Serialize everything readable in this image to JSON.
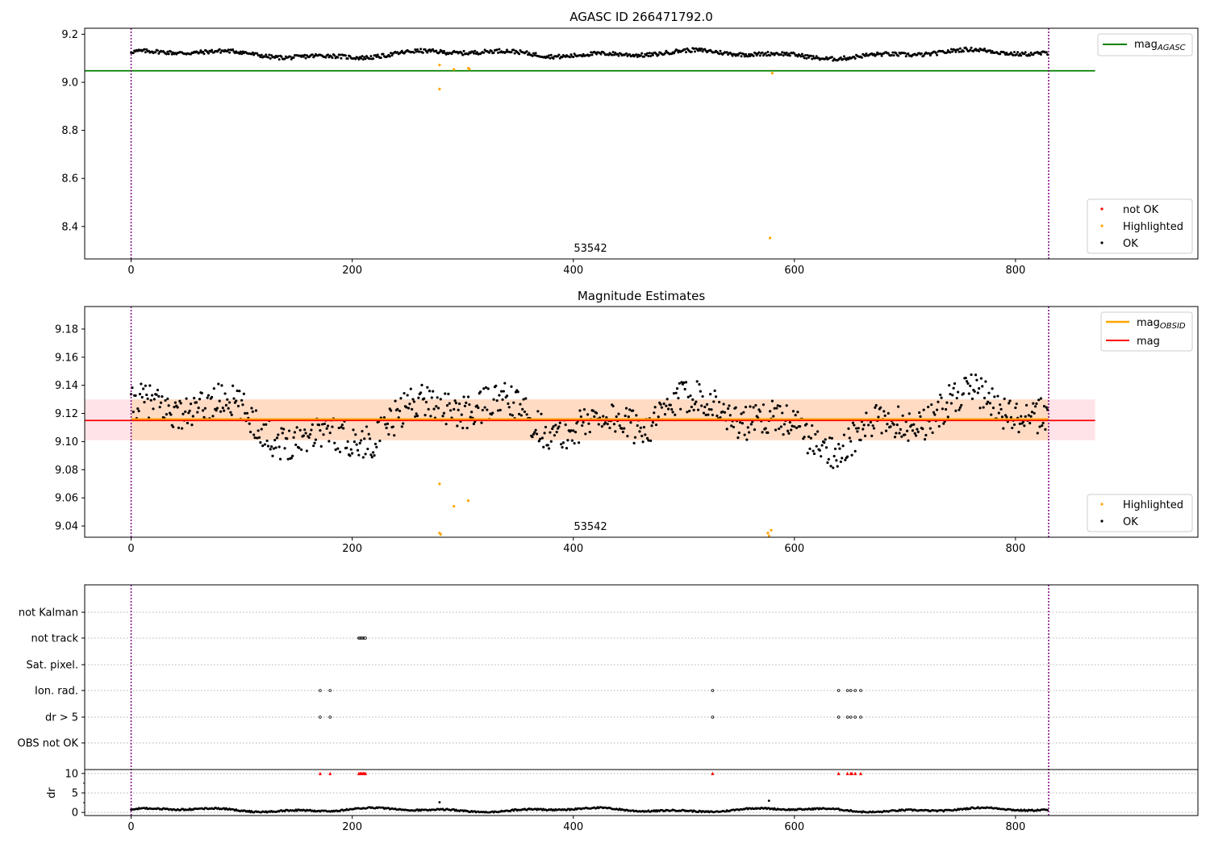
{
  "colors": {
    "ok": "#000000",
    "highlighted": "#ffa500",
    "not_ok": "#ff0000",
    "mag_agasc": "#008000",
    "mag_obsid": "#ffa500",
    "mag": "#ff0000",
    "band_outer": "#ffc0cb",
    "band_inner": "#ffd8b8",
    "vline": "#800080",
    "grid": "#b0b0b0"
  },
  "chart_data": [
    {
      "id": "agasc",
      "type": "scatter",
      "title": "AGASC ID 266471792.0",
      "xlim": [
        -42,
        965
      ],
      "ylim": [
        8.265,
        9.225
      ],
      "xticks": [
        0,
        200,
        400,
        600,
        800
      ],
      "yticks": [
        8.4,
        8.6,
        8.8,
        9.0,
        9.2
      ],
      "ytick_labels": [
        "8.4",
        "8.6",
        "8.8",
        "9.0",
        "9.2"
      ],
      "obs_label": "53542",
      "obs_label_x": 400,
      "vlines": [
        0,
        830
      ],
      "mag_agasc": {
        "value": 9.048,
        "x_range": [
          -42,
          872
        ]
      },
      "ok_series": {
        "n": 830,
        "base": 9.118
      },
      "highlighted": [
        {
          "x": 279,
          "y": 9.072
        },
        {
          "x": 279,
          "y": 8.972
        },
        {
          "x": 292,
          "y": 9.054
        },
        {
          "x": 305,
          "y": 9.059
        },
        {
          "x": 306,
          "y": 9.055
        },
        {
          "x": 578,
          "y": 8.352
        },
        {
          "x": 580,
          "y": 9.038
        }
      ],
      "legend_top": [
        {
          "label_main": "mag",
          "label_sub": "AGASC",
          "kind": "line",
          "color": "#008000"
        }
      ],
      "legend_bottom": [
        {
          "label": "not OK",
          "color": "#ff0000"
        },
        {
          "label": "Highlighted",
          "color": "#ffa500"
        },
        {
          "label": "OK",
          "color": "#000000"
        }
      ]
    },
    {
      "id": "estimates",
      "type": "scatter",
      "title": "Magnitude Estimates",
      "xlim": [
        -42,
        965
      ],
      "ylim": [
        9.032,
        9.196
      ],
      "xticks": [
        0,
        200,
        400,
        600,
        800
      ],
      "yticks": [
        9.04,
        9.06,
        9.08,
        9.1,
        9.12,
        9.14,
        9.16,
        9.18
      ],
      "ytick_labels": [
        "9.04",
        "9.06",
        "9.08",
        "9.10",
        "9.12",
        "9.14",
        "9.16",
        "9.18"
      ],
      "obs_label": "53542",
      "obs_label_x": 400,
      "vlines": [
        0,
        830
      ],
      "mag": 9.115,
      "mag_obsid": 9.116,
      "band_outer": [
        9.101,
        9.13,
        -42,
        872
      ],
      "band_inner": [
        9.101,
        9.13,
        0,
        830
      ],
      "ok_series": {
        "n": 830,
        "base": 9.116
      },
      "highlighted": [
        {
          "x": 279,
          "y": 9.07
        },
        {
          "x": 279,
          "y": 9.035
        },
        {
          "x": 280,
          "y": 9.034
        },
        {
          "x": 292,
          "y": 9.054
        },
        {
          "x": 305,
          "y": 9.058
        },
        {
          "x": 576,
          "y": 9.035
        },
        {
          "x": 577,
          "y": 9.033
        },
        {
          "x": 579,
          "y": 9.037
        }
      ],
      "legend_top": [
        {
          "label_main": "mag",
          "label_sub": "OBSID",
          "kind": "line",
          "color": "#ffa500"
        },
        {
          "label_main": "mag",
          "label_sub": "",
          "kind": "line",
          "color": "#ff0000"
        }
      ],
      "legend_bottom": [
        {
          "label": "Highlighted",
          "color": "#ffa500"
        },
        {
          "label": "OK",
          "color": "#000000"
        }
      ]
    },
    {
      "id": "flags",
      "type": "scatter",
      "xlim": [
        -42,
        965
      ],
      "xticks": [
        0,
        200,
        400,
        600,
        800
      ],
      "vlines": [
        0,
        830
      ],
      "flag_rows": [
        "not Kalman",
        "not track",
        "Sat. pixel.",
        "Ion. rad.",
        "dr > 5",
        "OBS not OK"
      ],
      "flag_points": [
        {
          "row": "not track",
          "x": [
            206,
            207,
            208,
            209,
            210,
            211,
            212
          ]
        },
        {
          "row": "Ion. rad.",
          "x": [
            171,
            180,
            526,
            640,
            648,
            651,
            655,
            660
          ]
        },
        {
          "row": "dr > 5",
          "x": [
            171,
            180,
            526,
            640,
            648,
            651,
            655,
            660
          ]
        }
      ],
      "dr": {
        "ylabel": "dr",
        "ylim": [
          -0.8,
          11
        ],
        "yticks": [
          0,
          5,
          10
        ],
        "ytick_labels": [
          "0",
          "5",
          "10"
        ],
        "capped_at_10": [
          171,
          180,
          206,
          207,
          208,
          209,
          210,
          211,
          212,
          526,
          640,
          648,
          651,
          652,
          655,
          660
        ],
        "outliers": [
          {
            "x": 279,
            "y": 2.6
          },
          {
            "x": 577,
            "y": 3.0
          }
        ],
        "n": 830
      }
    }
  ]
}
